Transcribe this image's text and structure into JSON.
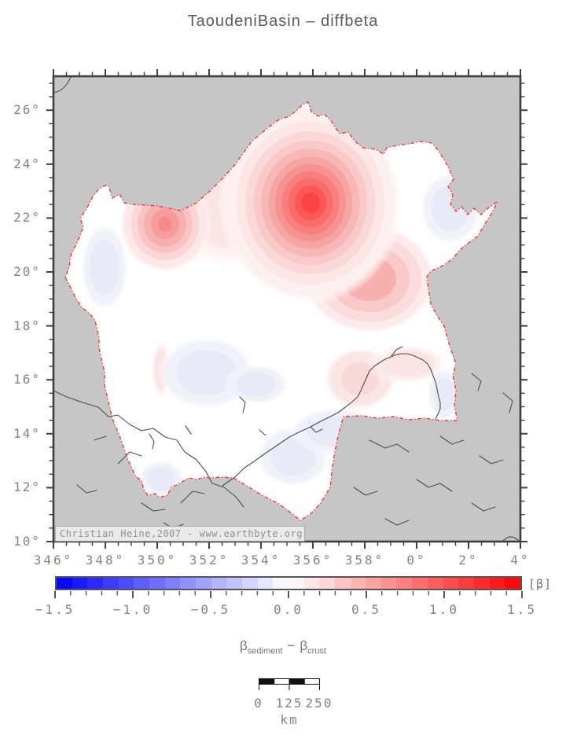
{
  "title": "TaoudeniBasin – diffbeta",
  "axes": {
    "lon_ticks": [
      "346°",
      "348°",
      "350°",
      "352°",
      "354°",
      "356°",
      "358°",
      "0°",
      "2°",
      "4°"
    ],
    "lat_ticks": [
      "26°",
      "24°",
      "22°",
      "20°",
      "18°",
      "16°",
      "14°",
      "12°",
      "10°"
    ],
    "lon_min": -14,
    "lon_max": 4,
    "lat_min": 10,
    "lat_max": 27.26,
    "major_step": 2,
    "minor_step": 0.5
  },
  "watermark": "Christian Heine,2007 - www.earthbyte.org",
  "colorbar": {
    "labels": [
      "−1.5",
      "−1.0",
      "−0.5",
      "0.0",
      "0.5",
      "1.0",
      "1.5"
    ],
    "min": -1.5,
    "max": 1.5,
    "major_step": 0.5,
    "minor_step": 0.1,
    "segments": 30,
    "unit": "[β]",
    "negative_color": "#0000ff",
    "zero_color": "#ffffff",
    "positive_color": "#ff0000"
  },
  "quantity_label": {
    "beta": "β",
    "sub1": "sediment",
    "minus": "−",
    "sub2": "crust"
  },
  "scalebar": {
    "labels": [
      "0",
      "125",
      "250"
    ],
    "unit": "km"
  },
  "map": {
    "land_color": "#c6c6c6",
    "basin_fill": "#ffffff",
    "outline_color": "#f43b3b",
    "positive_anomaly_color": "#fc4343",
    "negative_anomaly_color": "#e9e9f8",
    "river_color": "#4d4d4d",
    "frame_color": "#3e3e3e"
  }
}
